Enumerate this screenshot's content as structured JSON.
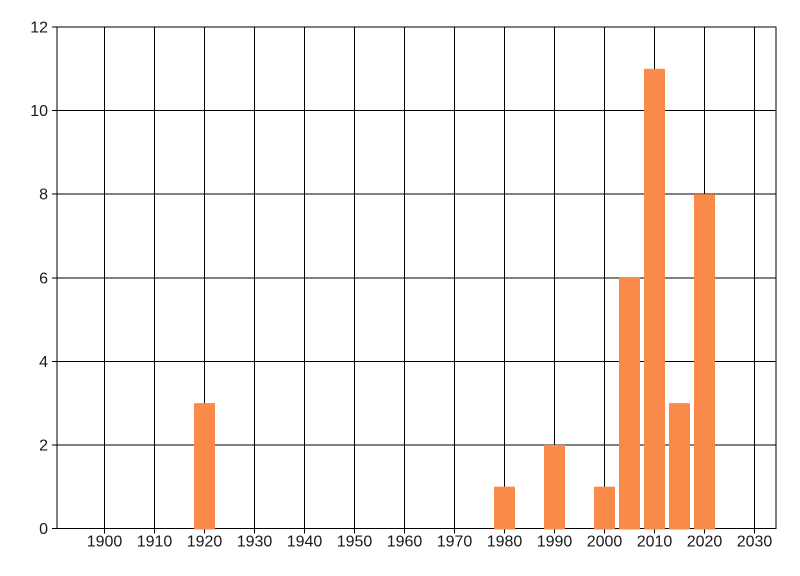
{
  "chart_data": {
    "type": "bar",
    "title": "",
    "xlabel": "",
    "ylabel": "",
    "legend": "none",
    "grid": "on",
    "x": [
      1920,
      1980,
      1990,
      2000,
      2005,
      2010,
      2015,
      2020
    ],
    "values": [
      3,
      1,
      2,
      1,
      6,
      11,
      3,
      8
    ],
    "bar_width_years": 4.2,
    "xlim": [
      1890.5,
      2034.3
    ],
    "ylim": [
      0,
      12
    ],
    "x_ticks": [
      1900,
      1910,
      1920,
      1930,
      1940,
      1950,
      1960,
      1970,
      1980,
      1990,
      2000,
      2010,
      2020,
      2030
    ],
    "y_ticks": [
      0,
      2,
      4,
      6,
      8,
      10,
      12
    ],
    "colors": {
      "bar_fill": "#F98A4A",
      "grid_line": "#000000",
      "axis_line": "#000000",
      "tick_label": "#1a1a1a",
      "background": "#FFFFFF"
    }
  }
}
